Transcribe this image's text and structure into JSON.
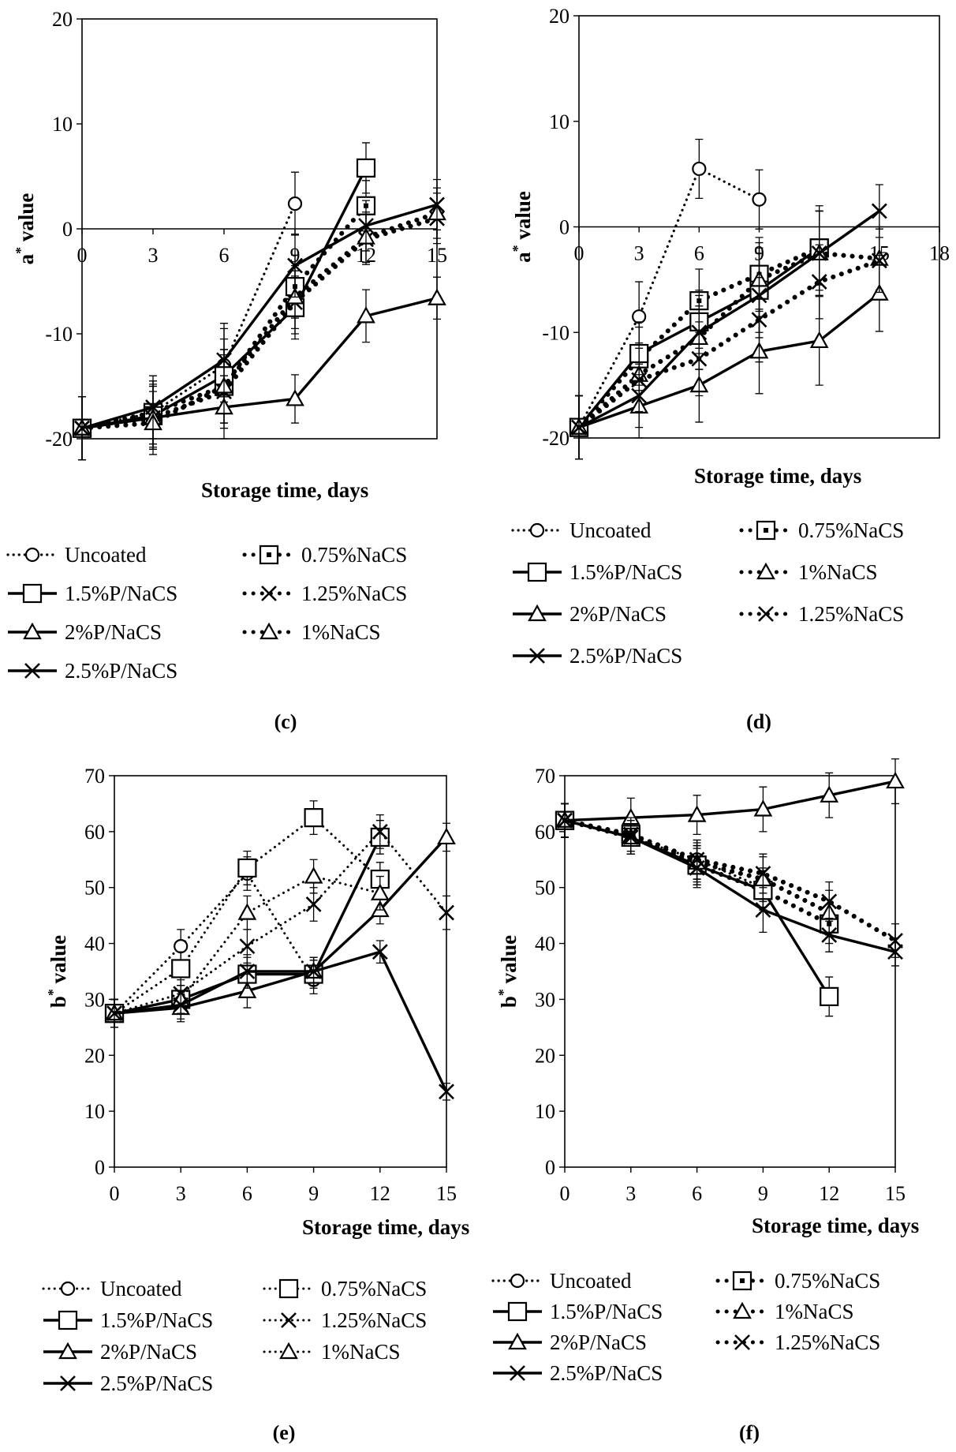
{
  "colors": {
    "ink": "#000000",
    "background": "#ffffff"
  },
  "chart_data": [
    {
      "id": "c",
      "panel_label": "(c)",
      "type": "line",
      "xlabel": "Storage time, days",
      "ylabel_base": "a",
      "ylabel_sup": "*",
      "ylabel_rest": " value",
      "ylim": [
        -20,
        20
      ],
      "yticks": [
        -20,
        -10,
        0,
        10,
        20
      ],
      "xlim": [
        0,
        15
      ],
      "xticks": [
        0,
        3,
        6,
        9,
        12,
        15
      ],
      "x_ticks_at_zero_line": true,
      "grid": false,
      "series": [
        {
          "name": "Uncoated",
          "style": "dotted",
          "marker": "circle",
          "x": [
            0,
            3,
            6,
            9
          ],
          "y": [
            -19,
            -17.5,
            -13,
            2.4
          ],
          "err": [
            3,
            3,
            3.5,
            3
          ]
        },
        {
          "name": "0.75%NaCS",
          "style": "bold-dotted",
          "marker": "square-dot",
          "x": [
            0,
            3,
            6,
            9,
            12
          ],
          "y": [
            -19,
            -17.5,
            -15,
            -5.5,
            2.2
          ],
          "err": [
            3,
            3,
            3.5,
            3,
            2.4
          ]
        },
        {
          "name": "1.5%P/NaCS",
          "style": "solid",
          "marker": "square",
          "x": [
            0,
            3,
            6,
            9,
            12
          ],
          "y": [
            -19,
            -17.8,
            -14,
            -7.5,
            5.8
          ],
          "err": [
            3,
            3,
            3.5,
            3,
            2.4
          ]
        },
        {
          "name": "1.25%NaCS",
          "style": "bold-dotted",
          "marker": "x",
          "x": [
            0,
            3,
            6,
            9,
            12,
            15
          ],
          "y": [
            -19,
            -18,
            -15.5,
            -7,
            -1,
            1
          ],
          "err": [
            3,
            3,
            3.5,
            3,
            2.4,
            2.4
          ]
        },
        {
          "name": "2%P/NaCS",
          "style": "solid",
          "marker": "triangle",
          "x": [
            0,
            3,
            6,
            9,
            12,
            15
          ],
          "y": [
            -19,
            -18,
            -17,
            -16.2,
            -8.3,
            -6.6
          ],
          "err": [
            3,
            3,
            3,
            2.3,
            2.5,
            2
          ]
        },
        {
          "name": "1%NaCS",
          "style": "bold-dotted",
          "marker": "triangle",
          "x": [
            0,
            3,
            6,
            9,
            12,
            15
          ],
          "y": [
            -19,
            -18.5,
            -15,
            -6.5,
            -0.8,
            1.5
          ],
          "err": [
            3,
            3,
            3.5,
            3,
            2.4,
            2.4
          ]
        },
        {
          "name": "2.5%P/NaCS",
          "style": "solid",
          "marker": "x",
          "x": [
            0,
            3,
            6,
            9,
            12,
            15
          ],
          "y": [
            -19,
            -17,
            -12.5,
            -3.5,
            0.3,
            2.3
          ],
          "err": [
            3,
            3,
            3.5,
            3,
            2.4,
            2.4
          ]
        }
      ],
      "legend": {
        "columns": [
          [
            "Uncoated",
            "1.5%P/NaCS",
            "2%P/NaCS",
            "2.5%P/NaCS"
          ],
          [
            "0.75%NaCS",
            "1.25%NaCS",
            "1%NaCS"
          ]
        ]
      }
    },
    {
      "id": "d",
      "panel_label": "(d)",
      "type": "line",
      "xlabel": "Storage time, days",
      "ylabel_base": "a",
      "ylabel_sup": "*",
      "ylabel_rest": " value",
      "ylim": [
        -20,
        20
      ],
      "yticks": [
        -20,
        -10,
        0,
        10,
        20
      ],
      "xlim": [
        0,
        18
      ],
      "xticks": [
        0,
        3,
        6,
        9,
        12,
        15,
        18
      ],
      "x_ticks_at_zero_line": true,
      "grid": false,
      "series": [
        {
          "name": "Uncoated",
          "style": "dotted",
          "marker": "circle",
          "x": [
            0,
            3,
            6,
            9
          ],
          "y": [
            -19,
            -8.5,
            5.5,
            2.6
          ],
          "err": [
            3,
            3.3,
            2.8,
            2.8
          ]
        },
        {
          "name": "0.75%NaCS",
          "style": "bold-dotted",
          "marker": "square-dot",
          "x": [
            0,
            3,
            6,
            9,
            12
          ],
          "y": [
            -19,
            -12.5,
            -7,
            -4.5,
            -2
          ],
          "err": [
            3,
            3,
            3,
            3.5,
            3.5
          ]
        },
        {
          "name": "1.5%P/NaCS",
          "style": "solid",
          "marker": "square",
          "x": [
            0,
            3,
            6,
            9,
            12
          ],
          "y": [
            -19,
            -12,
            -9,
            -6,
            -2
          ],
          "err": [
            3,
            3,
            3,
            4,
            4
          ]
        },
        {
          "name": "1%NaCS",
          "style": "bold-dotted",
          "marker": "triangle",
          "x": [
            0,
            3,
            6,
            9,
            12,
            15
          ],
          "y": [
            -19,
            -14,
            -10.5,
            -5,
            -2.5,
            -3
          ],
          "err": [
            3,
            3,
            3,
            3.5,
            4,
            3
          ]
        },
        {
          "name": "2%P/NaCS",
          "style": "solid",
          "marker": "triangle",
          "x": [
            0,
            3,
            6,
            9,
            12,
            15
          ],
          "y": [
            -19,
            -17,
            -15,
            -11.8,
            -10.8,
            -6.3
          ],
          "err": [
            3,
            3,
            3.5,
            4,
            4.2,
            3.6
          ]
        },
        {
          "name": "1.25%NaCS",
          "style": "bold-dotted",
          "marker": "x",
          "x": [
            0,
            3,
            6,
            9,
            12,
            15
          ],
          "y": [
            -19,
            -14.5,
            -12.5,
            -8.8,
            -5.2,
            -3.2
          ],
          "err": [
            3,
            3,
            3.5,
            4,
            3.5,
            3
          ]
        },
        {
          "name": "2.5%P/NaCS",
          "style": "solid",
          "marker": "x",
          "x": [
            0,
            3,
            6,
            9,
            12,
            15
          ],
          "y": [
            -19,
            -16,
            -10,
            -6.5,
            -2.5,
            1.5
          ],
          "err": [
            3,
            3,
            3.5,
            4,
            4,
            2.5
          ]
        }
      ],
      "legend": {
        "columns": [
          [
            "Uncoated",
            "1.5%P/NaCS",
            "2%P/NaCS",
            "2.5%P/NaCS"
          ],
          [
            "0.75%NaCS",
            "1%NaCS",
            "1.25%NaCS"
          ]
        ]
      }
    },
    {
      "id": "e",
      "panel_label": "(e)",
      "type": "line",
      "xlabel": "Storage time, days",
      "ylabel_base": "b",
      "ylabel_sup": "*",
      "ylabel_rest": " value",
      "ylim": [
        0,
        70
      ],
      "yticks": [
        0,
        10,
        20,
        30,
        40,
        50,
        60,
        70
      ],
      "xlim": [
        0,
        15
      ],
      "xticks": [
        0,
        3,
        6,
        9,
        12,
        15
      ],
      "x_ticks_at_zero_line": false,
      "grid": false,
      "series": [
        {
          "name": "Uncoated",
          "style": "thin-dotted",
          "marker": "circle",
          "x": [
            0,
            3,
            6,
            9
          ],
          "y": [
            27.5,
            39.5,
            52.5,
            33.5
          ],
          "err": [
            2.5,
            3,
            3,
            2.5
          ]
        },
        {
          "name": "0.75%NaCS",
          "style": "thin-dotted",
          "marker": "square",
          "x": [
            0,
            3,
            6,
            9,
            12
          ],
          "y": [
            27.5,
            35.5,
            53.5,
            62.5,
            51.5
          ],
          "err": [
            2.5,
            3,
            3,
            3,
            3
          ]
        },
        {
          "name": "1.5%P/NaCS",
          "style": "solid",
          "marker": "square",
          "x": [
            0,
            3,
            6,
            9,
            12
          ],
          "y": [
            27.5,
            30,
            34.5,
            34.5,
            59
          ],
          "err": [
            2.5,
            2.5,
            3,
            2.5,
            3
          ]
        },
        {
          "name": "1.25%NaCS",
          "style": "thin-dotted",
          "marker": "x",
          "x": [
            0,
            3,
            6,
            9,
            12,
            15
          ],
          "y": [
            27.5,
            31,
            39.5,
            47,
            60,
            45.5
          ],
          "err": [
            2.5,
            2.5,
            3,
            3,
            3,
            3
          ]
        },
        {
          "name": "2%P/NaCS",
          "style": "solid",
          "marker": "triangle",
          "x": [
            0,
            3,
            6,
            9,
            12,
            15
          ],
          "y": [
            27.5,
            28.5,
            31.5,
            35,
            46,
            59
          ],
          "err": [
            2.5,
            2.5,
            3,
            2.5,
            2.5,
            2.5
          ]
        },
        {
          "name": "1%NaCS",
          "style": "thin-dotted",
          "marker": "triangle",
          "x": [
            0,
            3,
            6,
            9,
            12
          ],
          "y": [
            27.5,
            30,
            45.5,
            52,
            49
          ],
          "err": [
            2.5,
            2.5,
            3,
            3,
            3
          ]
        },
        {
          "name": "2.5%P/NaCS",
          "style": "solid",
          "marker": "x",
          "x": [
            0,
            3,
            6,
            9,
            12,
            15
          ],
          "y": [
            27.5,
            29,
            35,
            35,
            38.5,
            13.5
          ],
          "err": [
            2.5,
            2.5,
            3,
            2.5,
            2,
            1.5
          ]
        }
      ],
      "legend": {
        "columns": [
          [
            "Uncoated",
            "1.5%P/NaCS",
            "2%P/NaCS",
            "2.5%P/NaCS"
          ],
          [
            "0.75%NaCS",
            "1.25%NaCS",
            "1%NaCS"
          ]
        ]
      }
    },
    {
      "id": "f",
      "panel_label": "(f)",
      "type": "line",
      "xlabel": "Storage time, days",
      "ylabel_base": "b",
      "ylabel_sup": "*",
      "ylabel_rest": " value",
      "ylim": [
        0,
        70
      ],
      "yticks": [
        0,
        10,
        20,
        30,
        40,
        50,
        60,
        70
      ],
      "xlim": [
        0,
        15
      ],
      "xticks": [
        0,
        3,
        6,
        9,
        12,
        15
      ],
      "x_ticks_at_zero_line": false,
      "grid": false,
      "series": [
        {
          "name": "Uncoated",
          "style": "dotted",
          "marker": "circle",
          "x": [
            0,
            3,
            6,
            9
          ],
          "y": [
            62,
            59,
            55,
            50
          ],
          "err": [
            3,
            3,
            3.5,
            3.5
          ]
        },
        {
          "name": "0.75%NaCS",
          "style": "bold-dotted",
          "marker": "square-dot",
          "x": [
            0,
            3,
            6,
            9,
            12
          ],
          "y": [
            62,
            59.5,
            54,
            49.5,
            43.5
          ],
          "err": [
            3,
            3,
            3.5,
            3.5,
            3.5
          ]
        },
        {
          "name": "1.5%P/NaCS",
          "style": "solid",
          "marker": "square",
          "x": [
            0,
            3,
            6,
            9,
            12
          ],
          "y": [
            62,
            59,
            54,
            49.5,
            30.5
          ],
          "err": [
            3,
            3,
            3.5,
            3.5,
            3.5
          ]
        },
        {
          "name": "1%NaCS",
          "style": "bold-dotted",
          "marker": "triangle",
          "x": [
            0,
            3,
            6,
            9,
            12
          ],
          "y": [
            62,
            59,
            54.5,
            51.5,
            45.5
          ],
          "err": [
            3,
            3,
            3.5,
            4,
            4
          ]
        },
        {
          "name": "2%P/NaCS",
          "style": "solid",
          "marker": "triangle",
          "x": [
            0,
            3,
            6,
            9,
            12,
            15
          ],
          "y": [
            62,
            62.5,
            63,
            64,
            66.5,
            69
          ],
          "err": [
            3,
            3.5,
            3.5,
            4,
            4,
            4
          ]
        },
        {
          "name": "1.25%NaCS",
          "style": "bold-dotted",
          "marker": "x",
          "x": [
            0,
            3,
            6,
            9,
            12,
            15
          ],
          "y": [
            62,
            59.5,
            55,
            52.5,
            47.5,
            40.5
          ],
          "err": [
            3,
            3,
            3.5,
            3.5,
            3.5,
            3
          ]
        },
        {
          "name": "2.5%P/NaCS",
          "style": "solid",
          "marker": "x",
          "x": [
            0,
            3,
            6,
            9,
            12,
            15
          ],
          "y": [
            62,
            59,
            53.5,
            46,
            41.5,
            38.5
          ],
          "err": [
            3,
            3,
            3.5,
            4,
            3,
            2.5
          ]
        }
      ],
      "legend": {
        "columns": [
          [
            "Uncoated",
            "1.5%P/NaCS",
            "2%P/NaCS",
            "2.5%P/NaCS"
          ],
          [
            "0.75%NaCS",
            "1%NaCS",
            "1.25%NaCS"
          ]
        ]
      }
    }
  ]
}
